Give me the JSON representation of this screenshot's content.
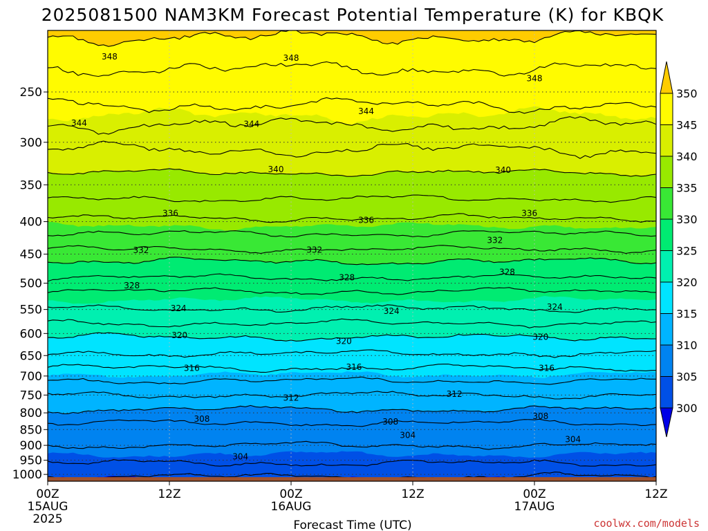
{
  "chart_data": {
    "type": "heatmap",
    "title": "2025081500 NAM3KM Forecast Potential Temperature (K) for KBQK",
    "xlabel": "Forecast Time (UTC)",
    "ylabel": "",
    "credit": "coolwx.com/models",
    "x_hours_range": [
      0,
      60
    ],
    "x_ticks": [
      {
        "hour": 0,
        "time": "00Z",
        "date": "15AUG",
        "year": "2025"
      },
      {
        "hour": 12,
        "time": "12Z",
        "date": "",
        "year": ""
      },
      {
        "hour": 24,
        "time": "00Z",
        "date": "16AUG",
        "year": ""
      },
      {
        "hour": 36,
        "time": "12Z",
        "date": "",
        "year": ""
      },
      {
        "hour": 48,
        "time": "00Z",
        "date": "17AUG",
        "year": ""
      },
      {
        "hour": 60,
        "time": "12Z",
        "date": "",
        "year": ""
      }
    ],
    "y_axis": "pressure (hPa), log scale, inverted",
    "ylim": [
      1025,
      200
    ],
    "y_ticks": [
      250,
      300,
      350,
      400,
      450,
      500,
      550,
      600,
      650,
      700,
      750,
      800,
      850,
      900,
      950,
      1000
    ],
    "color_levels": [
      300,
      305,
      310,
      315,
      320,
      325,
      330,
      335,
      340,
      345,
      350
    ],
    "colors": [
      "#0000e6",
      "#0050e6",
      "#0083f0",
      "#00b4ff",
      "#00e4ff",
      "#00f0b0",
      "#00eb72",
      "#39e835",
      "#98e900",
      "#d9ef00",
      "#fffb00",
      "#ffcc00"
    ],
    "ground_color": "#a0522d",
    "surface_pressure": 1010,
    "contour_interval": 2,
    "contour_labels": [
      {
        "value": 348,
        "hour": 6.1,
        "p": 220
      },
      {
        "value": 348,
        "hour": 24.0,
        "p": 221
      },
      {
        "value": 348,
        "hour": 48.0,
        "p": 238
      },
      {
        "value": 344,
        "hour": 3.1,
        "p": 280
      },
      {
        "value": 344,
        "hour": 20.1,
        "p": 281
      },
      {
        "value": 344,
        "hour": 31.4,
        "p": 268
      },
      {
        "value": 340,
        "hour": 22.5,
        "p": 331
      },
      {
        "value": 340,
        "hour": 44.9,
        "p": 332
      },
      {
        "value": 336,
        "hour": 12.1,
        "p": 388
      },
      {
        "value": 336,
        "hour": 31.4,
        "p": 398
      },
      {
        "value": 336,
        "hour": 47.5,
        "p": 388
      },
      {
        "value": 332,
        "hour": 9.2,
        "p": 444
      },
      {
        "value": 332,
        "hour": 26.3,
        "p": 443
      },
      {
        "value": 332,
        "hour": 44.1,
        "p": 428
      },
      {
        "value": 328,
        "hour": 8.3,
        "p": 504
      },
      {
        "value": 328,
        "hour": 29.5,
        "p": 490
      },
      {
        "value": 328,
        "hour": 45.3,
        "p": 480
      },
      {
        "value": 324,
        "hour": 12.9,
        "p": 548
      },
      {
        "value": 324,
        "hour": 33.9,
        "p": 553
      },
      {
        "value": 324,
        "hour": 50.0,
        "p": 545
      },
      {
        "value": 320,
        "hour": 13.0,
        "p": 604
      },
      {
        "value": 320,
        "hour": 29.2,
        "p": 617
      },
      {
        "value": 320,
        "hour": 48.6,
        "p": 608
      },
      {
        "value": 316,
        "hour": 14.2,
        "p": 680
      },
      {
        "value": 316,
        "hour": 30.2,
        "p": 678
      },
      {
        "value": 316,
        "hour": 49.2,
        "p": 680
      },
      {
        "value": 312,
        "hour": 24.0,
        "p": 758
      },
      {
        "value": 312,
        "hour": 40.1,
        "p": 747
      },
      {
        "value": 308,
        "hour": 15.2,
        "p": 818
      },
      {
        "value": 308,
        "hour": 33.8,
        "p": 826
      },
      {
        "value": 308,
        "hour": 48.6,
        "p": 810
      },
      {
        "value": 304,
        "hour": 35.5,
        "p": 868
      },
      {
        "value": 304,
        "hour": 51.8,
        "p": 881
      },
      {
        "value": 304,
        "hour": 19.0,
        "p": 938
      }
    ]
  }
}
